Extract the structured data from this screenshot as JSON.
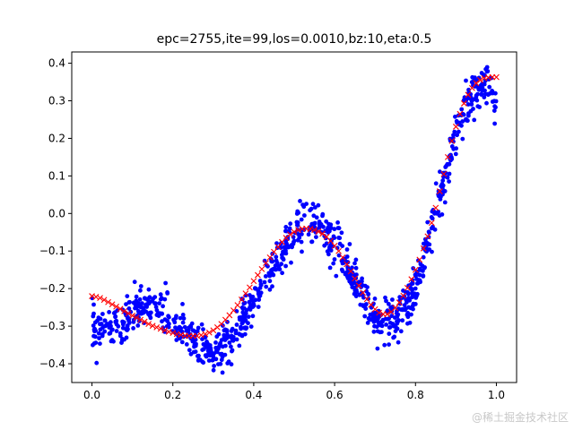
{
  "chart_data": {
    "type": "scatter",
    "title": "epc=2755,ite=99,los=0.0010,bz:10,eta:0.5",
    "xlabel": "",
    "ylabel": "",
    "xlim": [
      -0.05,
      1.05
    ],
    "ylim": [
      -0.45,
      0.43
    ],
    "x_ticks": [
      0.0,
      0.2,
      0.4,
      0.6,
      0.8,
      1.0
    ],
    "x_tick_labels": [
      "0.0",
      "0.2",
      "0.4",
      "0.6",
      "0.8",
      "1.0"
    ],
    "y_ticks": [
      -0.4,
      -0.3,
      -0.2,
      -0.1,
      0.0,
      0.1,
      0.2,
      0.3,
      0.4
    ],
    "y_tick_labels": [
      "−0.4",
      "−0.3",
      "−0.2",
      "−0.1",
      "0.0",
      "0.1",
      "0.2",
      "0.3",
      "0.4"
    ],
    "grid": false,
    "legend": "none",
    "colors": {
      "samples": "#0000ff",
      "prediction": "#ff0000"
    },
    "series": [
      {
        "kind": "samples",
        "marker": "dot",
        "count": 1000,
        "x_range": [
          0.0,
          1.0
        ],
        "spread": 0.05,
        "trend": [
          [
            0.0,
            -0.3
          ],
          [
            0.05,
            -0.31
          ],
          [
            0.1,
            -0.27
          ],
          [
            0.15,
            -0.24
          ],
          [
            0.2,
            -0.29
          ],
          [
            0.25,
            -0.34
          ],
          [
            0.3,
            -0.38
          ],
          [
            0.35,
            -0.33
          ],
          [
            0.4,
            -0.24
          ],
          [
            0.45,
            -0.14
          ],
          [
            0.5,
            -0.05
          ],
          [
            0.53,
            -0.02
          ],
          [
            0.56,
            -0.03
          ],
          [
            0.6,
            -0.08
          ],
          [
            0.65,
            -0.17
          ],
          [
            0.7,
            -0.28
          ],
          [
            0.75,
            -0.29
          ],
          [
            0.8,
            -0.2
          ],
          [
            0.85,
            0.0
          ],
          [
            0.9,
            0.22
          ],
          [
            0.95,
            0.33
          ],
          [
            0.98,
            0.36
          ],
          [
            1.0,
            0.28
          ]
        ]
      },
      {
        "kind": "prediction",
        "marker": "x",
        "points": [
          [
            0.0,
            -0.22
          ],
          [
            0.01,
            -0.222
          ],
          [
            0.02,
            -0.225
          ],
          [
            0.03,
            -0.23
          ],
          [
            0.04,
            -0.236
          ],
          [
            0.05,
            -0.242
          ],
          [
            0.06,
            -0.248
          ],
          [
            0.07,
            -0.254
          ],
          [
            0.08,
            -0.26
          ],
          [
            0.09,
            -0.266
          ],
          [
            0.1,
            -0.272
          ],
          [
            0.11,
            -0.277
          ],
          [
            0.12,
            -0.283
          ],
          [
            0.13,
            -0.288
          ],
          [
            0.14,
            -0.294
          ],
          [
            0.15,
            -0.299
          ],
          [
            0.16,
            -0.303
          ],
          [
            0.17,
            -0.307
          ],
          [
            0.18,
            -0.311
          ],
          [
            0.19,
            -0.315
          ],
          [
            0.2,
            -0.318
          ],
          [
            0.21,
            -0.321
          ],
          [
            0.22,
            -0.323
          ],
          [
            0.23,
            -0.325
          ],
          [
            0.24,
            -0.326
          ],
          [
            0.25,
            -0.326
          ],
          [
            0.26,
            -0.326
          ],
          [
            0.27,
            -0.324
          ],
          [
            0.28,
            -0.321
          ],
          [
            0.29,
            -0.317
          ],
          [
            0.3,
            -0.311
          ],
          [
            0.31,
            -0.303
          ],
          [
            0.32,
            -0.294
          ],
          [
            0.33,
            -0.283
          ],
          [
            0.34,
            -0.271
          ],
          [
            0.35,
            -0.258
          ],
          [
            0.36,
            -0.244
          ],
          [
            0.37,
            -0.229
          ],
          [
            0.38,
            -0.213
          ],
          [
            0.39,
            -0.197
          ],
          [
            0.4,
            -0.18
          ],
          [
            0.41,
            -0.164
          ],
          [
            0.42,
            -0.148
          ],
          [
            0.43,
            -0.132
          ],
          [
            0.44,
            -0.117
          ],
          [
            0.45,
            -0.102
          ],
          [
            0.46,
            -0.089
          ],
          [
            0.47,
            -0.076
          ],
          [
            0.48,
            -0.065
          ],
          [
            0.49,
            -0.056
          ],
          [
            0.5,
            -0.049
          ],
          [
            0.51,
            -0.044
          ],
          [
            0.52,
            -0.041
          ],
          [
            0.53,
            -0.04
          ],
          [
            0.54,
            -0.041
          ],
          [
            0.55,
            -0.044
          ],
          [
            0.56,
            -0.048
          ],
          [
            0.57,
            -0.054
          ],
          [
            0.58,
            -0.062
          ],
          [
            0.59,
            -0.073
          ],
          [
            0.6,
            -0.086
          ],
          [
            0.61,
            -0.1
          ],
          [
            0.62,
            -0.117
          ],
          [
            0.63,
            -0.135
          ],
          [
            0.64,
            -0.154
          ],
          [
            0.65,
            -0.173
          ],
          [
            0.66,
            -0.192
          ],
          [
            0.67,
            -0.211
          ],
          [
            0.68,
            -0.228
          ],
          [
            0.69,
            -0.243
          ],
          [
            0.7,
            -0.255
          ],
          [
            0.71,
            -0.264
          ],
          [
            0.72,
            -0.268
          ],
          [
            0.73,
            -0.268
          ],
          [
            0.74,
            -0.262
          ],
          [
            0.75,
            -0.251
          ],
          [
            0.76,
            -0.237
          ],
          [
            0.77,
            -0.219
          ],
          [
            0.78,
            -0.198
          ],
          [
            0.79,
            -0.175
          ],
          [
            0.8,
            -0.15
          ],
          [
            0.81,
            -0.123
          ],
          [
            0.82,
            -0.093
          ],
          [
            0.83,
            -0.061
          ],
          [
            0.84,
            -0.025
          ],
          [
            0.85,
            0.015
          ],
          [
            0.86,
            0.059
          ],
          [
            0.87,
            0.105
          ],
          [
            0.88,
            0.15
          ],
          [
            0.89,
            0.193
          ],
          [
            0.9,
            0.231
          ],
          [
            0.91,
            0.265
          ],
          [
            0.92,
            0.293
          ],
          [
            0.93,
            0.316
          ],
          [
            0.94,
            0.334
          ],
          [
            0.95,
            0.347
          ],
          [
            0.96,
            0.355
          ],
          [
            0.97,
            0.36
          ],
          [
            0.98,
            0.362
          ],
          [
            0.99,
            0.363
          ],
          [
            1.0,
            0.363
          ]
        ]
      }
    ]
  },
  "watermark": "@稀土掘金技术社区"
}
